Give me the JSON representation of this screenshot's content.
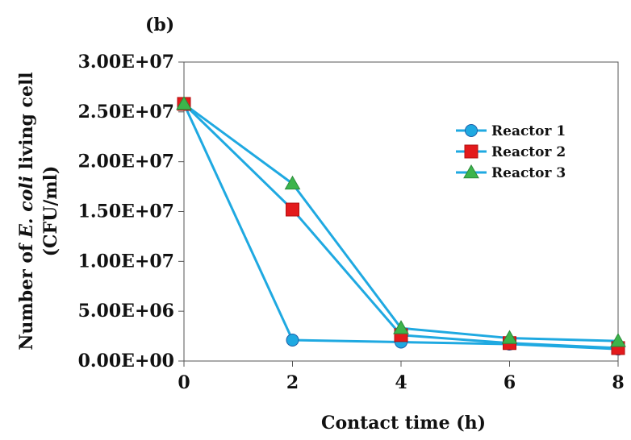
{
  "panel_label": "(b)",
  "chart_data": {
    "type": "line",
    "title": "",
    "xlabel": "Contact time (h)",
    "ylabel_part1": "Number of ",
    "ylabel_italic": "E. coli",
    "ylabel_part2": " living cell",
    "ylabel_line2": "(CFU/ml)",
    "x": [
      0,
      2,
      4,
      6,
      8
    ],
    "xlim": [
      0,
      8
    ],
    "ylim": [
      0,
      30000000
    ],
    "x_ticks": [
      "0",
      "2",
      "4",
      "6",
      "8"
    ],
    "y_ticks": [
      "0.00E+00",
      "5.00E+06",
      "1.00E+07",
      "1.50E+07",
      "2.00E+07",
      "2.50E+07",
      "3.00E+07"
    ],
    "grid": false,
    "legend_position": "top-right",
    "line_color": "#1fa9e1",
    "series": [
      {
        "name": "Reactor 1",
        "marker": "circle",
        "color": "#1fa9e1",
        "values": [
          25800000,
          2100000,
          1900000,
          1700000,
          1200000
        ]
      },
      {
        "name": "Reactor 2",
        "marker": "square",
        "color": "#e8641e",
        "values": [
          25800000,
          15200000,
          2600000,
          1800000,
          1300000
        ]
      },
      {
        "name": "Reactor 3",
        "marker": "triangle",
        "color": "#3cb44b",
        "values": [
          25800000,
          17800000,
          3300000,
          2300000,
          2000000
        ]
      }
    ]
  }
}
